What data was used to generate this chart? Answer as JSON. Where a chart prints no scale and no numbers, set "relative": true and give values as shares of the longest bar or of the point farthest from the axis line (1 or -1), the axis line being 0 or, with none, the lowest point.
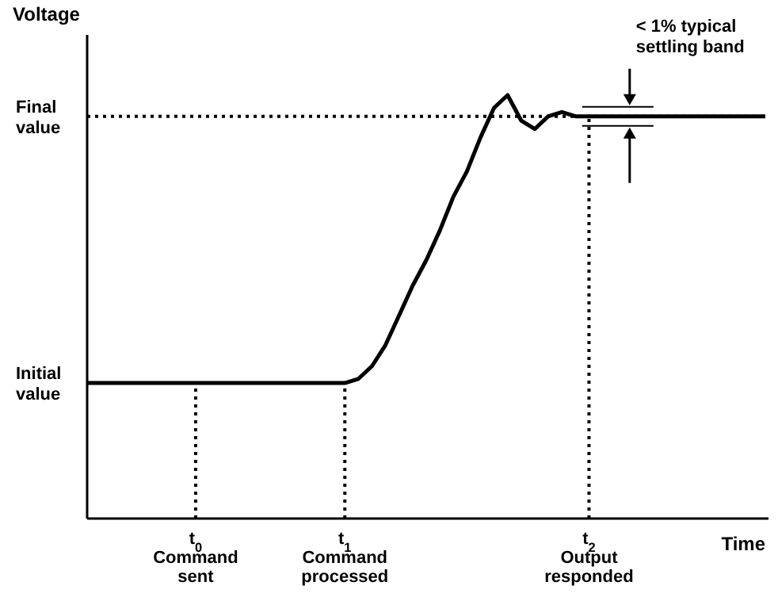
{
  "chart_data": {
    "type": "line",
    "ylabel": "Voltage",
    "xlabel": "Time",
    "relative": true,
    "categories": [
      null,
      null,
      null,
      null,
      null,
      null,
      null,
      null,
      "t$_{0}$ Command sent",
      null,
      null,
      null,
      null,
      null,
      null,
      null,
      null,
      null,
      null,
      "t$_{1}$ Command processed",
      null,
      null,
      null,
      null,
      null,
      null,
      null,
      null,
      null,
      null,
      null,
      null,
      null,
      null,
      null,
      null,
      null,
      "t$_{2}$ Output responded",
      null,
      null,
      null,
      null,
      null,
      null,
      null,
      null,
      null,
      null,
      null,
      null,
      null
    ],
    "series": [
      {
        "color": "#000000",
        "values": [
          0.32,
          0.32,
          0.32,
          0.32,
          0.32,
          0.32,
          0.32,
          0.32,
          0.32,
          0.32,
          0.32,
          0.32,
          0.32,
          0.32,
          0.32,
          0.32,
          0.32,
          0.32,
          0.32,
          0.32,
          0.33,
          0.36,
          0.41,
          0.48,
          0.55,
          0.61,
          0.68,
          0.76,
          0.82,
          0.9,
          0.97,
          1,
          0.94,
          0.92,
          0.95,
          0.96,
          0.95,
          0.95,
          0.95,
          0.95,
          0.95,
          0.95,
          0.95,
          0.95,
          0.95,
          0.95,
          0.95,
          0.95,
          0.95,
          0.95,
          0.95
        ]
      }
    ],
    "ref_lines": [
      {
        "axis": "x",
        "value": "t$_{0}$ Command sent",
        "line_style": "dotted"
      },
      {
        "axis": "x",
        "value": "t$_{1}$ Command processed",
        "line_style": "dotted"
      },
      {
        "axis": "x",
        "value": "t$_{2}$ Output responded",
        "line_style": "dotted"
      },
      {
        "axis": "y",
        "value": 0.95,
        "line_style": "dotted"
      }
    ],
    "annotations": [
      "Initial value",
      "Final value",
      "< 1% typical settling band"
    ],
    "grid": false,
    "line_style": "solid",
    "marker": "none"
  }
}
